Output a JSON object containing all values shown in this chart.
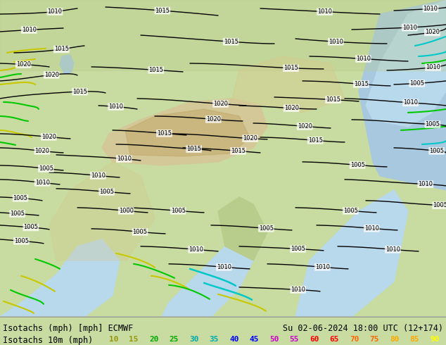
{
  "title_left": "Isotachs (mph) [mph] ECMWF",
  "title_right": "Su 02-06-2024 18:00 UTC (12+174)",
  "legend_label": "Isotachs 10m (mph)",
  "legend_values": [
    "10",
    "15",
    "20",
    "25",
    "30",
    "35",
    "40",
    "45",
    "50",
    "55",
    "60",
    "65",
    "70",
    "75",
    "80",
    "85",
    "90"
  ],
  "legend_colors": [
    "#96960a",
    "#96960a",
    "#00aa00",
    "#00aa00",
    "#00aaaa",
    "#00aaaa",
    "#0000ff",
    "#0000ff",
    "#cc00cc",
    "#cc00cc",
    "#ff0000",
    "#ff0000",
    "#ff6600",
    "#ff6600",
    "#ffaa00",
    "#ffaa00",
    "#ffff00"
  ],
  "map_colors": {
    "land_light": "#c8dba0",
    "land_medium": "#b8cc8c",
    "land_dark": "#a8bc7c",
    "plateau": "#d4c898",
    "ocean": "#a8c8e0",
    "sea_light": "#b8d8ec",
    "water_dark": "#90b8d8",
    "snow_ice": "#e8e8e8",
    "desert": "#d8c88c",
    "mountain": "#c0a868"
  },
  "bg_color": "#c8dba0",
  "bottom_bg": "#ffffff",
  "text_color": "#000000",
  "font_size_title": 8.5,
  "font_size_legend_label": 8.5,
  "font_size_legend_val": 8,
  "fig_width": 6.34,
  "fig_height": 4.9,
  "dpi": 100
}
